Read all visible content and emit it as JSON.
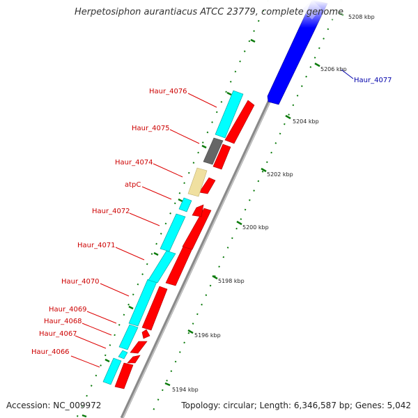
{
  "title": "Herpetosiphon aurantiacus ATCC 23779, complete genome",
  "accession": "Accession: NC_009972",
  "stats": "Topology: circular; Length: 6,346,587 bp; Genes: 5,042",
  "colors": {
    "backbone": "#7a7a7a",
    "forward_cds": "#ff0000",
    "reverse_cds": "#00ffff",
    "highlight_cds": "#0000ff",
    "rna_gene": "#666666",
    "other_gene": "#f0e0a0",
    "tick": "#0a7a0a",
    "label_red": "#cc0000",
    "label_blue": "#0000aa"
  },
  "ruler_labels": [
    "5194 kbp",
    "5196 kbp",
    "5198 kbp",
    "5200 kbp",
    "5202 kbp",
    "5204 kbp",
    "5206 kbp",
    "5208 kbp"
  ],
  "gene_labels": [
    {
      "name": "Haur_4066",
      "color": "red"
    },
    {
      "name": "Haur_4067",
      "color": "red"
    },
    {
      "name": "Haur_4068",
      "color": "red"
    },
    {
      "name": "Haur_4069",
      "color": "red"
    },
    {
      "name": "Haur_4070",
      "color": "red"
    },
    {
      "name": "Haur_4071",
      "color": "red"
    },
    {
      "name": "Haur_4072",
      "color": "red"
    },
    {
      "name": "atpC",
      "color": "red"
    },
    {
      "name": "Haur_4074",
      "color": "red"
    },
    {
      "name": "Haur_4075",
      "color": "red"
    },
    {
      "name": "Haur_4076",
      "color": "red"
    },
    {
      "name": "Haur_4077",
      "color": "blue"
    }
  ]
}
